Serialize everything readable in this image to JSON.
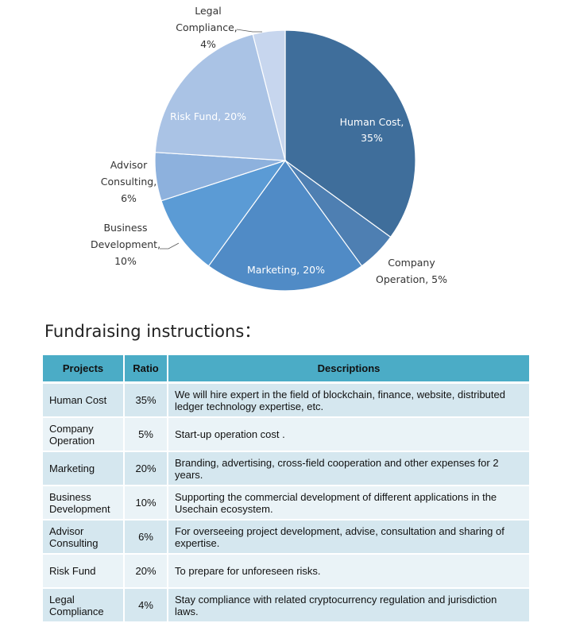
{
  "chart_data": {
    "type": "pie",
    "slices": [
      {
        "label": "Human Cost,",
        "pct_text": "35%",
        "value": 35,
        "color": "#3f6e9b"
      },
      {
        "label": "Company",
        "label2": "Operation, 5%",
        "value": 5,
        "color": "#4e7fb2"
      },
      {
        "label": "Marketing, 20%",
        "value": 20,
        "color": "#508bc6"
      },
      {
        "label": "Business",
        "label2": "Development,",
        "pct_text": "10%",
        "value": 10,
        "color": "#5b9bd5"
      },
      {
        "label": "Advisor",
        "label2": "Consulting,",
        "pct_text": "6%",
        "value": 6,
        "color": "#8db1dd"
      },
      {
        "label": "Risk Fund, 20%",
        "value": 20,
        "color": "#aac3e5"
      },
      {
        "label": "Legal",
        "label2": "Compliance,",
        "pct_text": "4%",
        "value": 4,
        "color": "#c7d6ee"
      }
    ]
  },
  "section_title": "Fundraising instructions：",
  "table": {
    "headers": [
      "Projects",
      "Ratio",
      "Descriptions"
    ],
    "rows": [
      {
        "project": "Human Cost",
        "ratio": "35%",
        "description": "We will hire expert in the field of blockchain, finance, website, distributed ledger technology expertise, etc."
      },
      {
        "project": "Company Operation",
        "ratio": "5%",
        "description": "Start-up operation cost ."
      },
      {
        "project": "Marketing",
        "ratio": "20%",
        "description": "Branding, advertising, cross-field cooperation and other expenses for 2 years."
      },
      {
        "project": "Business Development",
        "ratio": "10%",
        "description": "Supporting the commercial development of different applications in the Usechain ecosystem."
      },
      {
        "project": "Advisor Consulting",
        "ratio": "6%",
        "description": "For overseeing project development, advise, consultation and sharing of expertise."
      },
      {
        "project": "Risk Fund",
        "ratio": "20%",
        "description": "To prepare for unforeseen risks."
      },
      {
        "project": "Legal Compliance",
        "ratio": "4%",
        "description": "Stay compliance with related cryptocurrency regulation and jurisdiction laws."
      }
    ]
  }
}
